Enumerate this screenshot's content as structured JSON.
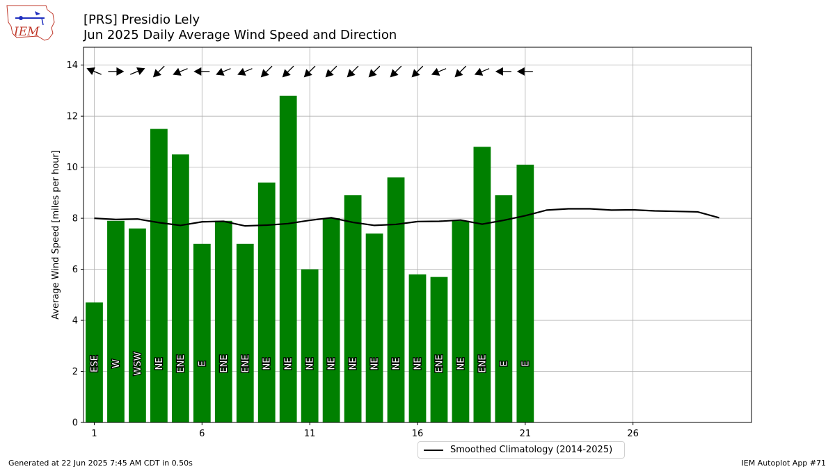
{
  "header": {
    "title_line1": "[PRS] Presidio Lely",
    "title_line2": "Jun 2025 Daily Average Wind Speed and Direction"
  },
  "footer": {
    "left": "Generated at 22 Jun 2025 7:45 AM CDT in 0.50s",
    "right": "IEM Autoplot App #71"
  },
  "logo": {
    "text": "IEM"
  },
  "chart_data": {
    "type": "bar",
    "ylabel": "Average Wind Speed [miles per hour]",
    "xlim": [
      0.5,
      31.5
    ],
    "ylim": [
      0,
      14.7
    ],
    "xticks": [
      1,
      6,
      11,
      16,
      21,
      26
    ],
    "yticks": [
      0,
      2,
      4,
      6,
      8,
      10,
      12,
      14
    ],
    "grid": true,
    "bar_color": "#008000",
    "days": [
      1,
      2,
      3,
      4,
      5,
      6,
      7,
      8,
      9,
      10,
      11,
      12,
      13,
      14,
      15,
      16,
      17,
      18,
      19,
      20,
      21
    ],
    "values": [
      4.7,
      7.9,
      7.6,
      11.5,
      10.5,
      7.0,
      7.9,
      7.0,
      9.4,
      12.8,
      6.0,
      8.0,
      8.9,
      7.4,
      9.6,
      5.8,
      5.7,
      7.9,
      10.8,
      8.9,
      10.1
    ],
    "direction_labels": [
      "ESE",
      "W",
      "WSW",
      "NE",
      "ENE",
      "E",
      "ENE",
      "ENE",
      "NE",
      "NE",
      "NE",
      "NE",
      "NE",
      "NE",
      "NE",
      "NE",
      "ENE",
      "NE",
      "ENE",
      "E",
      "E"
    ],
    "arrow_directions_deg": [
      112.5,
      270,
      247.5,
      45,
      67.5,
      90,
      67.5,
      67.5,
      45,
      45,
      45,
      45,
      45,
      45,
      45,
      45,
      67.5,
      45,
      67.5,
      90,
      90
    ],
    "climatology": {
      "name": "Smoothed Climatology (2014-2025)",
      "color": "#000000",
      "days": [
        1,
        2,
        3,
        4,
        5,
        6,
        7,
        8,
        9,
        10,
        11,
        12,
        13,
        14,
        15,
        16,
        17,
        18,
        19,
        20,
        21,
        22,
        23,
        24,
        25,
        26,
        27,
        28,
        29,
        30
      ],
      "values": [
        8.0,
        7.95,
        7.97,
        7.83,
        7.72,
        7.86,
        7.88,
        7.7,
        7.73,
        7.79,
        7.92,
        8.02,
        7.84,
        7.72,
        7.76,
        7.87,
        7.88,
        7.93,
        7.77,
        7.92,
        8.1,
        8.32,
        8.37,
        8.37,
        8.32,
        8.33,
        8.29,
        8.27,
        8.25,
        8.02
      ]
    },
    "legend_position": "bottom-center"
  }
}
